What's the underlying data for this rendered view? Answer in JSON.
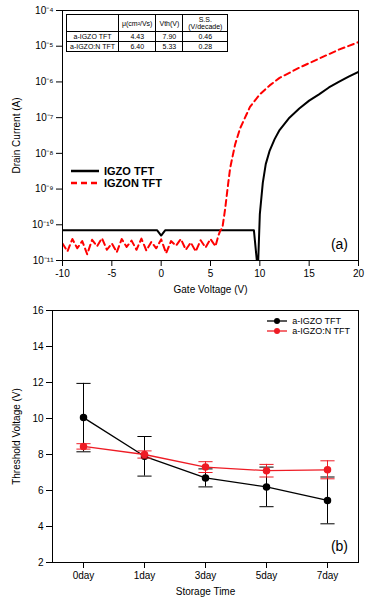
{
  "chart_data": [
    {
      "type": "line",
      "log": "y",
      "grid": false,
      "x_label": "Gate Voltage (V)",
      "y_label": "Drain Current (A)",
      "annotation": "(a)",
      "legend": "center left",
      "xlim": [
        -10,
        20
      ],
      "xticks": [
        -10,
        -5,
        0,
        5,
        10,
        15,
        20
      ],
      "ylim": [
        1e-11,
        0.0001
      ],
      "yticks": [
        {
          "value": 1e-11,
          "label": "10⁻¹¹"
        },
        {
          "value": 1e-10,
          "label": "10⁻¹⁰"
        },
        {
          "value": 1e-09,
          "label": "10⁻⁹"
        },
        {
          "value": 1e-08,
          "label": "10⁻⁸"
        },
        {
          "value": 1e-07,
          "label": "10⁻⁷"
        },
        {
          "value": 1e-06,
          "label": "10⁻⁶"
        },
        {
          "value": 1e-05,
          "label": "10⁻⁵"
        },
        {
          "value": 0.0001,
          "label": "10⁻⁴"
        }
      ],
      "table": {
        "columns": [
          "μ(cm²/Vs)",
          "Vth(V)",
          "S.S. (V/decade)"
        ],
        "rows": [
          {
            "name": "a-IGZO TFT",
            "cells": [
              "4.43",
              "7.90",
              "0.46"
            ]
          },
          {
            "name": "a-IGZO:N TFT",
            "cells": [
              "6.40",
              "5.33",
              "0.28"
            ]
          }
        ]
      },
      "series": [
        {
          "name": "IGZO TFT",
          "color": "#000000",
          "line_style": "solid",
          "marker": "none",
          "x": [
            -10,
            -8,
            -6,
            -4,
            -2,
            -0.4,
            0,
            0.4,
            2,
            4,
            6,
            8,
            9.4,
            9.8,
            10,
            10.3,
            10.6,
            11,
            11.5,
            12,
            13,
            14,
            15,
            16,
            17,
            18,
            19,
            20
          ],
          "values": [
            7e-11,
            7e-11,
            7e-11,
            7e-11,
            7e-11,
            7e-11,
            5e-11,
            7e-11,
            7e-11,
            7e-11,
            7e-11,
            7e-11,
            7e-11,
            5e-12,
            2e-10,
            1.5e-09,
            5e-09,
            1.2e-08,
            2.5e-08,
            4.5e-08,
            1e-07,
            1.8e-07,
            3e-07,
            4.5e-07,
            7e-07,
            1e-06,
            1.4e-06,
            1.9e-06
          ]
        },
        {
          "name": "IGZON TFT",
          "color": "#ff0000",
          "line_style": "dashed",
          "marker": "none",
          "x": [
            -10,
            -9.5,
            -9,
            -8.5,
            -8,
            -7.5,
            -7,
            -6.5,
            -6,
            -5.5,
            -5,
            -4.5,
            -4,
            -3.5,
            -3,
            -2.5,
            -2,
            -1.5,
            -1,
            -0.5,
            0,
            0.5,
            1,
            1.5,
            2,
            2.5,
            3,
            3.5,
            4,
            4.5,
            5,
            5.5,
            5.8,
            6,
            6.2,
            6.5,
            6.8,
            7,
            7.5,
            8,
            9,
            10,
            11,
            12,
            14,
            16,
            18,
            20
          ],
          "values": [
            3e-11,
            1.8e-11,
            4e-11,
            2.2e-11,
            3.5e-11,
            1.5e-11,
            3.8e-11,
            2.5e-11,
            4.2e-11,
            2e-11,
            3e-11,
            1.7e-11,
            4e-11,
            2.4e-11,
            3.6e-11,
            2e-11,
            4.1e-11,
            1.9e-11,
            3.3e-11,
            2.2e-11,
            3.9e-11,
            1.6e-11,
            3.5e-11,
            2.6e-11,
            4e-11,
            2e-11,
            3.2e-11,
            1.8e-11,
            3.7e-11,
            2.3e-11,
            4e-11,
            2.5e-11,
            5e-11,
            7e-11,
            8e-11,
            3e-10,
            1.5e-09,
            4e-09,
            1.8e-08,
            5e-08,
            2e-07,
            4.5e-07,
            8e-07,
            1.3e-06,
            2.5e-06,
            4.5e-06,
            8e-06,
            1.3e-05
          ]
        }
      ]
    },
    {
      "type": "line",
      "grid": false,
      "x_label": "Storage Time",
      "y_label": "Threshold Voltage (V)",
      "annotation": "(b)",
      "legend": "upper right",
      "categories": [
        "0day",
        "1day",
        "3day",
        "5day",
        "7day"
      ],
      "ylim": [
        2,
        16
      ],
      "yticks": [
        2,
        4,
        6,
        8,
        10,
        12,
        14,
        16
      ],
      "series": [
        {
          "name": "a-IGZO TFT",
          "color": "#000000",
          "line_style": "solid",
          "marker": "circle",
          "values": [
            10.05,
            7.9,
            6.7,
            6.2,
            5.45
          ],
          "errors": [
            1.9,
            1.1,
            0.5,
            1.1,
            1.3
          ]
        },
        {
          "name": "a-IGZO:N TFT",
          "color": "#ee1c25",
          "line_style": "solid",
          "marker": "circle",
          "values": [
            8.45,
            8.0,
            7.3,
            7.1,
            7.15
          ],
          "errors": [
            0.15,
            0.2,
            0.3,
            0.35,
            0.5
          ]
        }
      ]
    }
  ]
}
